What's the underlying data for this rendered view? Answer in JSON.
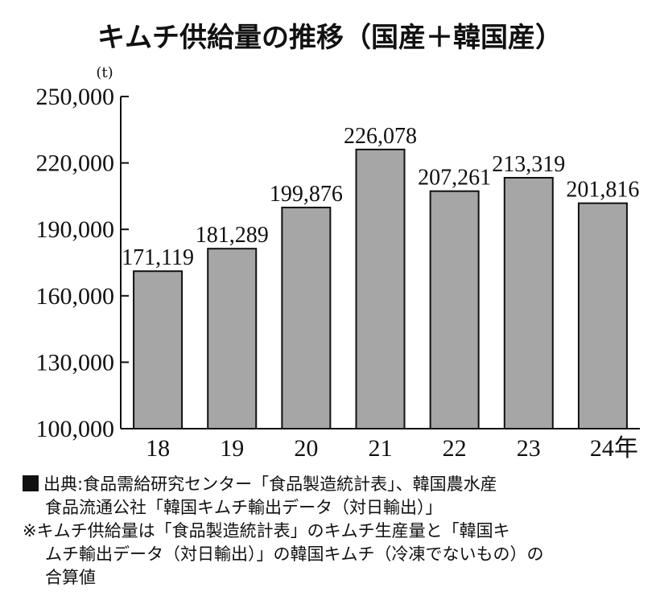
{
  "chart_data": {
    "type": "bar",
    "title": "キムチ供給量の推移（国産＋韓国産）",
    "unit": "(t)",
    "categories": [
      "18",
      "19",
      "20",
      "21",
      "22",
      "23",
      "24年"
    ],
    "values": [
      171119,
      181289,
      199876,
      226078,
      207261,
      213319,
      201816
    ],
    "value_labels": [
      "171,119",
      "181,289",
      "199,876",
      "226,078",
      "207,261",
      "213,319",
      "201,816"
    ],
    "ylim": [
      100000,
      250000
    ],
    "yticks": [
      100000,
      130000,
      160000,
      190000,
      220000,
      250000
    ],
    "ytick_labels": [
      "100,000",
      "130,000",
      "160,000",
      "190,000",
      "220,000",
      "250,000"
    ],
    "grid": false,
    "bar_color": "#a6a6a6"
  },
  "notes": {
    "source_line1": "出典:食品需給研究センター「食品製造統計表」、韓国農水産",
    "source_line2": "食品流通公社「韓国キムチ輸出データ（対日輸出）」",
    "remark_line1": "※キムチ供給量は「食品製造統計表」のキムチ生産量と「韓国キ",
    "remark_line2": "ムチ輸出データ（対日輸出）」の韓国キムチ（冷凍でないもの）の",
    "remark_line3": "合算値"
  }
}
